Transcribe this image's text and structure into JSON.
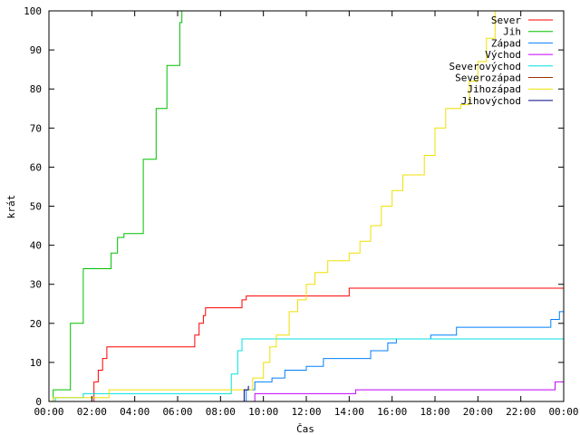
{
  "chart_data": {
    "type": "line",
    "title": "",
    "xlabel": "Čas",
    "ylabel": "krát",
    "xlim": [
      0,
      24
    ],
    "ylim": [
      0,
      100
    ],
    "x_unit": "hours",
    "x_ticks": [
      0,
      2,
      4,
      6,
      8,
      10,
      12,
      14,
      16,
      18,
      20,
      22,
      24
    ],
    "x_tick_labels": [
      "00:00",
      "02:00",
      "04:00",
      "06:00",
      "08:00",
      "10:00",
      "12:00",
      "14:00",
      "16:00",
      "18:00",
      "20:00",
      "22:00",
      "00:00"
    ],
    "y_ticks": [
      0,
      10,
      20,
      30,
      40,
      50,
      60,
      70,
      80,
      90,
      100
    ],
    "y_tick_labels": [
      "0",
      "10",
      "20",
      "30",
      "40",
      "50",
      "60",
      "70",
      "80",
      "90",
      "100"
    ],
    "grid": false,
    "legend_position": "top-right",
    "series": [
      {
        "name": "Sever",
        "color": "#ff0000",
        "x": [
          0,
          2.0,
          2.1,
          2.3,
          2.5,
          2.7,
          6.7,
          6.8,
          7.0,
          7.2,
          7.3,
          8.8,
          9.0,
          9.2,
          13.8,
          14.0,
          24
        ],
        "y": [
          0,
          0,
          5,
          8,
          11,
          14,
          14,
          17,
          20,
          22,
          24,
          24,
          26,
          27,
          27,
          29,
          29
        ]
      },
      {
        "name": "Jih",
        "color": "#00c000",
        "x": [
          0,
          0.2,
          1.0,
          1.6,
          2.6,
          2.9,
          3.2,
          3.5,
          4.4,
          5.0,
          5.5,
          6.1,
          6.2
        ],
        "y": [
          0,
          3,
          20,
          34,
          34,
          38,
          42,
          43,
          62,
          75,
          86,
          97,
          100
        ]
      },
      {
        "name": "Západ",
        "color": "#0080ff",
        "x": [
          0,
          9.1,
          9.2,
          9.6,
          10.4,
          11.0,
          12.0,
          12.8,
          14.0,
          15.0,
          15.8,
          16.2,
          17.8,
          19.0,
          22.0,
          23.4,
          23.8,
          24
        ],
        "y": [
          0,
          0,
          3,
          5,
          6,
          8,
          9,
          11,
          11,
          13,
          15,
          16,
          17,
          19,
          19,
          21,
          23,
          25
        ]
      },
      {
        "name": "Východ",
        "color": "#c000ff",
        "x": [
          0,
          9.5,
          9.6,
          14.2,
          14.3,
          23.5,
          23.6,
          24
        ],
        "y": [
          0,
          0,
          2,
          2,
          3,
          3,
          5,
          5
        ]
      },
      {
        "name": "Severovýchod",
        "color": "#00e0e0",
        "x": [
          0,
          0.3,
          1.5,
          1.6,
          8.2,
          8.5,
          8.8,
          9.0,
          24
        ],
        "y": [
          0,
          1,
          1,
          2,
          2,
          7,
          13,
          16,
          16
        ]
      },
      {
        "name": "Severozápad",
        "color": "#a03000",
        "x": [
          0,
          24
        ],
        "y": [
          0,
          0
        ]
      },
      {
        "name": "Jihozápad",
        "color": "#f0e000",
        "x": [
          0,
          0.2,
          1.5,
          2.8,
          9.3,
          9.5,
          10.0,
          10.3,
          10.6,
          10.8,
          11.2,
          11.6,
          12.0,
          12.4,
          13.0,
          14.0,
          14.5,
          15.0,
          15.5,
          16.0,
          16.5,
          17.0,
          17.5,
          18.0,
          18.5,
          19.2,
          19.6,
          20.0,
          20.4,
          20.8
        ],
        "y": [
          0,
          1,
          1,
          3,
          3,
          6,
          10,
          14,
          17,
          17,
          23,
          26,
          30,
          33,
          36,
          38,
          41,
          45,
          50,
          54,
          58,
          58,
          63,
          70,
          75,
          76,
          82,
          87,
          93,
          100
        ]
      },
      {
        "name": "Jihovýchod",
        "color": "#000080",
        "x": [
          0,
          9.0,
          9.1,
          9.3
        ],
        "y": [
          0,
          0,
          3,
          4
        ]
      }
    ]
  }
}
